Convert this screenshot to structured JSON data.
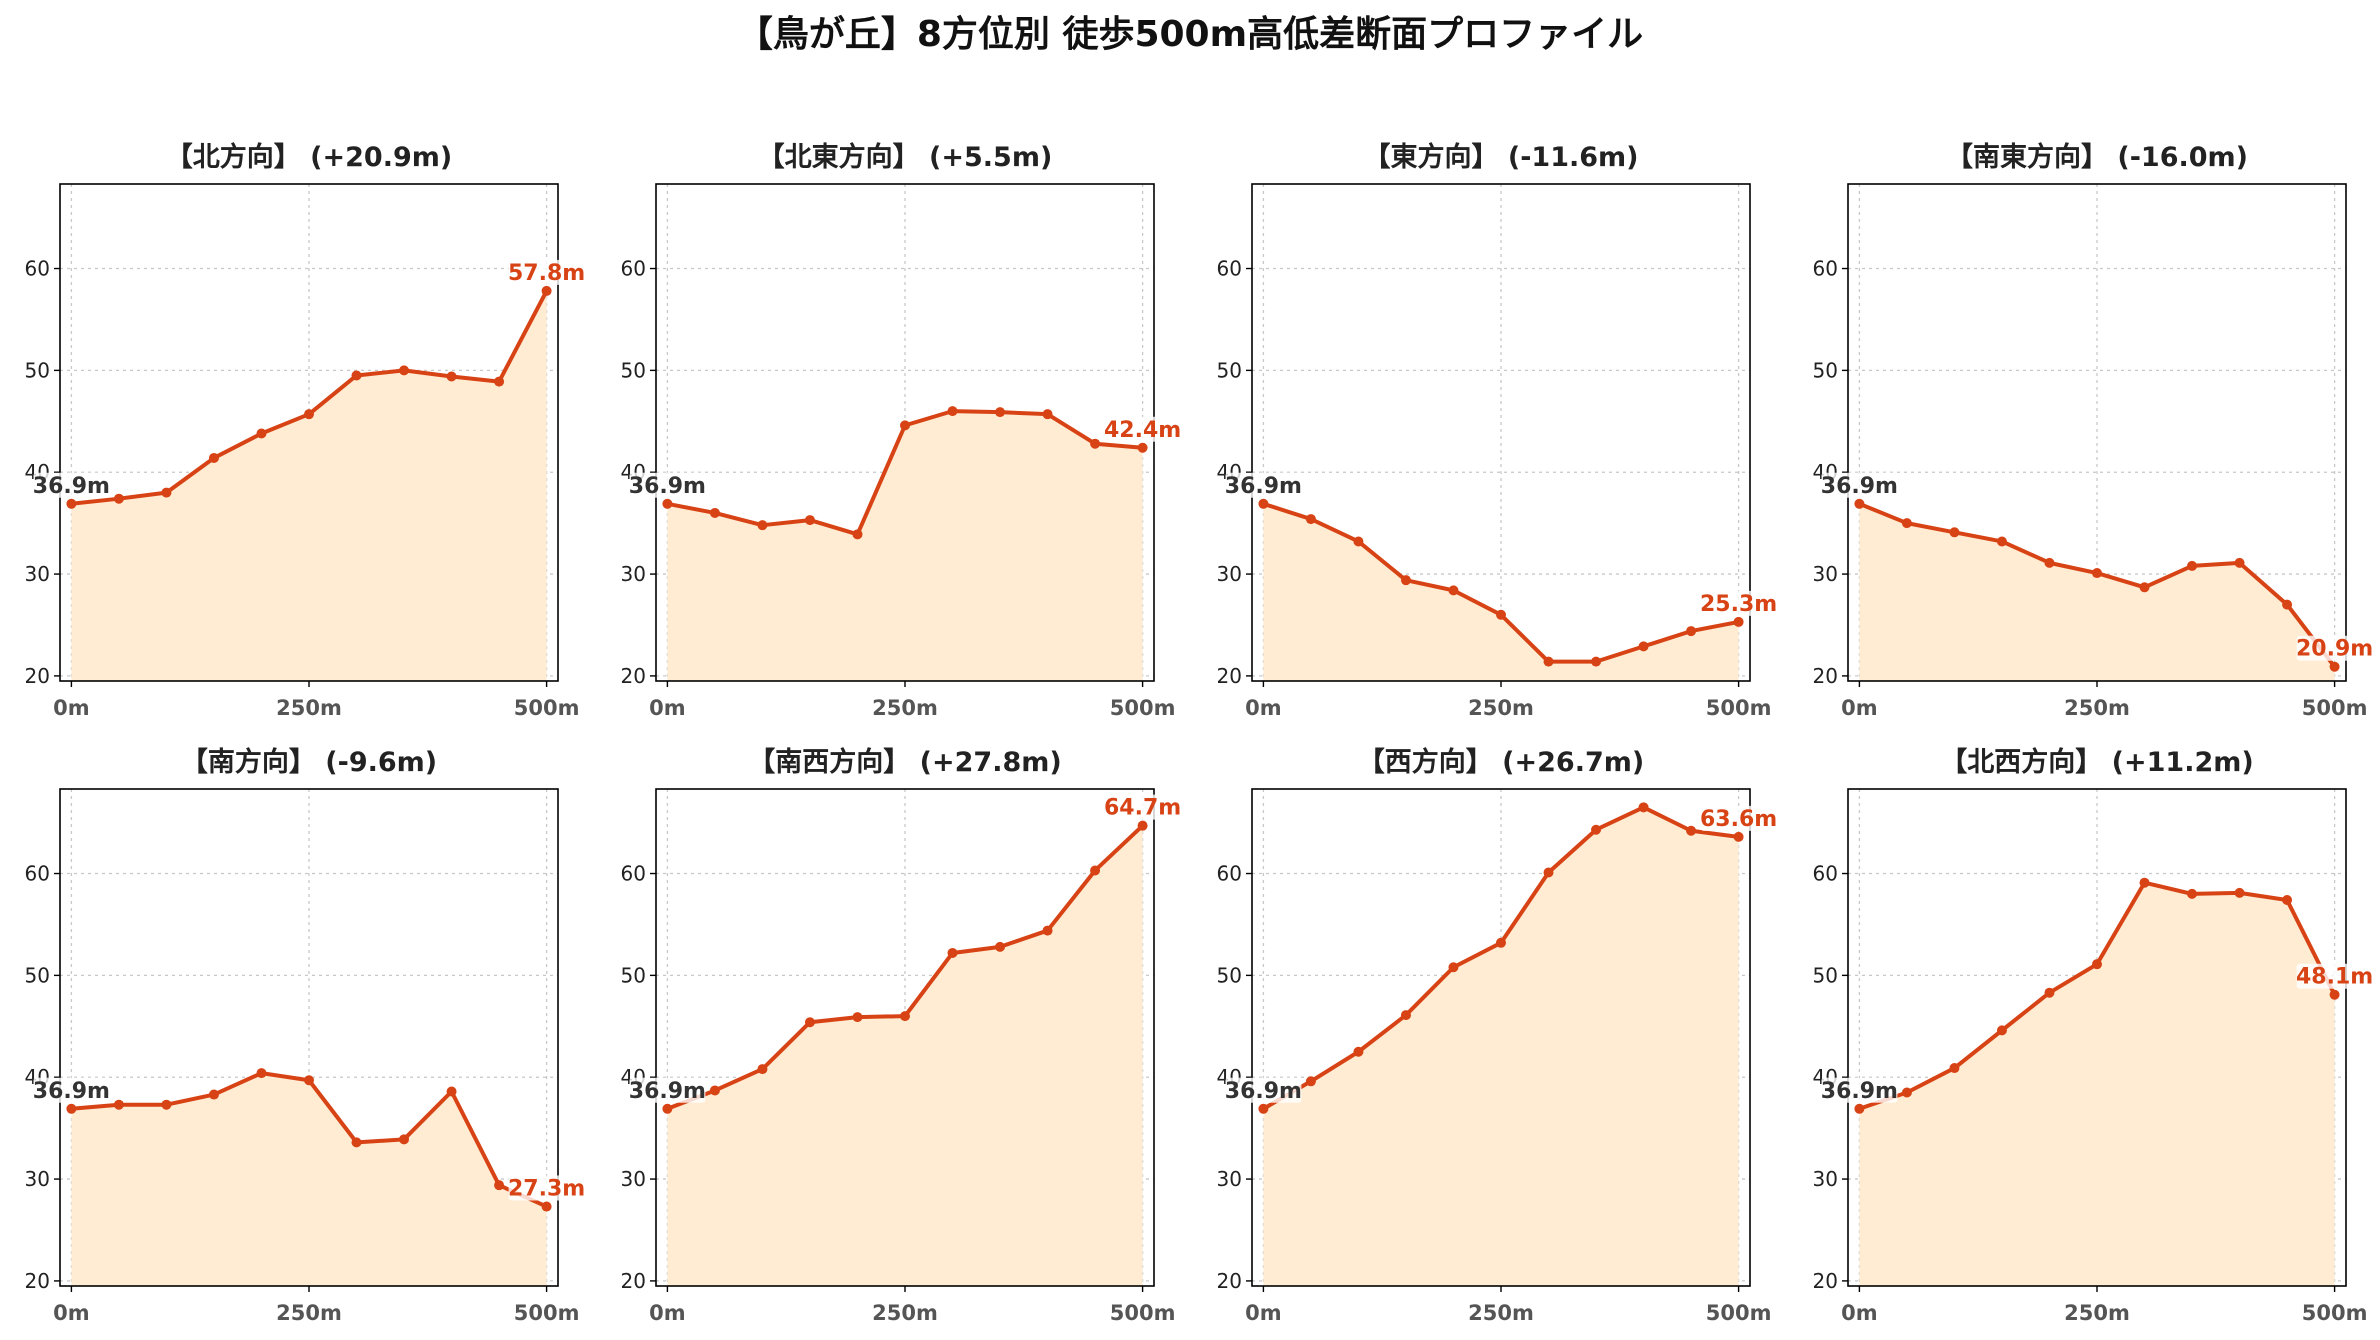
{
  "title": "【鳥が丘】8方位別 徒歩500m高低差断面プロファイル",
  "colors": {
    "line": "#d84315",
    "fill": "#ffecd2",
    "start_label": "#333333",
    "end_label": "#d84315"
  },
  "chart_data": [
    {
      "type": "area",
      "title": "【北方向】 (+20.9m)",
      "x": [
        0,
        50,
        100,
        150,
        200,
        250,
        300,
        350,
        400,
        450,
        500
      ],
      "values": [
        36.9,
        37.4,
        38.0,
        41.4,
        43.8,
        45.7,
        49.5,
        50.0,
        49.4,
        48.9,
        57.8
      ],
      "start_label": "36.9m",
      "end_label": "57.8m",
      "xticks": [
        "0m",
        "250m",
        "500m"
      ],
      "yticks": [
        "20",
        "30",
        "40",
        "50",
        "60"
      ],
      "ylim": [
        19.5,
        68.3
      ],
      "xlim": [
        -12,
        512
      ],
      "grid": true
    },
    {
      "type": "area",
      "title": "【北東方向】 (+5.5m)",
      "x": [
        0,
        50,
        100,
        150,
        200,
        250,
        300,
        350,
        400,
        450,
        500
      ],
      "values": [
        36.9,
        36.0,
        34.8,
        35.3,
        33.9,
        44.6,
        46.0,
        45.9,
        45.7,
        42.8,
        42.4
      ],
      "start_label": "36.9m",
      "end_label": "42.4m",
      "xticks": [
        "0m",
        "250m",
        "500m"
      ],
      "yticks": [
        "20",
        "30",
        "40",
        "50",
        "60"
      ],
      "ylim": [
        19.5,
        68.3
      ],
      "xlim": [
        -12,
        512
      ],
      "grid": true
    },
    {
      "type": "area",
      "title": "【東方向】 (-11.6m)",
      "x": [
        0,
        50,
        100,
        150,
        200,
        250,
        300,
        350,
        400,
        450,
        500
      ],
      "values": [
        36.9,
        35.4,
        33.2,
        29.4,
        28.4,
        26.0,
        21.4,
        21.4,
        22.9,
        24.4,
        25.3
      ],
      "start_label": "36.9m",
      "end_label": "25.3m",
      "xticks": [
        "0m",
        "250m",
        "500m"
      ],
      "yticks": [
        "20",
        "30",
        "40",
        "50",
        "60"
      ],
      "ylim": [
        19.5,
        68.3
      ],
      "xlim": [
        -12,
        512
      ],
      "grid": true
    },
    {
      "type": "area",
      "title": "【南東方向】 (-16.0m)",
      "x": [
        0,
        50,
        100,
        150,
        200,
        250,
        300,
        350,
        400,
        450,
        500
      ],
      "values": [
        36.9,
        35.0,
        34.1,
        33.2,
        31.1,
        30.1,
        28.7,
        30.8,
        31.1,
        27.0,
        20.9
      ],
      "start_label": "36.9m",
      "end_label": "20.9m",
      "xticks": [
        "0m",
        "250m",
        "500m"
      ],
      "yticks": [
        "20",
        "30",
        "40",
        "50",
        "60"
      ],
      "ylim": [
        19.5,
        68.3
      ],
      "xlim": [
        -12,
        512
      ],
      "grid": true
    },
    {
      "type": "area",
      "title": "【南方向】 (-9.6m)",
      "x": [
        0,
        50,
        100,
        150,
        200,
        250,
        300,
        350,
        400,
        450,
        500
      ],
      "values": [
        36.9,
        37.3,
        37.3,
        38.3,
        40.4,
        39.7,
        33.6,
        33.9,
        38.6,
        29.4,
        27.3
      ],
      "start_label": "36.9m",
      "end_label": "27.3m",
      "xticks": [
        "0m",
        "250m",
        "500m"
      ],
      "yticks": [
        "20",
        "30",
        "40",
        "50",
        "60"
      ],
      "ylim": [
        19.5,
        68.3
      ],
      "xlim": [
        -12,
        512
      ],
      "grid": true
    },
    {
      "type": "area",
      "title": "【南西方向】 (+27.8m)",
      "x": [
        0,
        50,
        100,
        150,
        200,
        250,
        300,
        350,
        400,
        450,
        500
      ],
      "values": [
        36.9,
        38.7,
        40.8,
        45.4,
        45.9,
        46.0,
        52.2,
        52.8,
        54.4,
        60.3,
        64.7
      ],
      "start_label": "36.9m",
      "end_label": "64.7m",
      "xticks": [
        "0m",
        "250m",
        "500m"
      ],
      "yticks": [
        "20",
        "30",
        "40",
        "50",
        "60"
      ],
      "ylim": [
        19.5,
        68.3
      ],
      "xlim": [
        -12,
        512
      ],
      "grid": true
    },
    {
      "type": "area",
      "title": "【西方向】 (+26.7m)",
      "x": [
        0,
        50,
        100,
        150,
        200,
        250,
        300,
        350,
        400,
        450,
        500
      ],
      "values": [
        36.9,
        39.6,
        42.5,
        46.1,
        50.8,
        53.2,
        60.1,
        64.3,
        66.5,
        64.2,
        63.6
      ],
      "start_label": "36.9m",
      "end_label": "63.6m",
      "xticks": [
        "0m",
        "250m",
        "500m"
      ],
      "yticks": [
        "20",
        "30",
        "40",
        "50",
        "60"
      ],
      "ylim": [
        19.5,
        68.3
      ],
      "xlim": [
        -12,
        512
      ],
      "grid": true
    },
    {
      "type": "area",
      "title": "【北西方向】 (+11.2m)",
      "x": [
        0,
        50,
        100,
        150,
        200,
        250,
        300,
        350,
        400,
        450,
        500
      ],
      "values": [
        36.9,
        38.5,
        40.9,
        44.6,
        48.3,
        51.1,
        59.1,
        58.0,
        58.1,
        57.4,
        48.1
      ],
      "start_label": "36.9m",
      "end_label": "48.1m",
      "xticks": [
        "0m",
        "250m",
        "500m"
      ],
      "yticks": [
        "20",
        "30",
        "40",
        "50",
        "60"
      ],
      "ylim": [
        19.5,
        68.3
      ],
      "xlim": [
        -12,
        512
      ],
      "grid": true
    }
  ]
}
